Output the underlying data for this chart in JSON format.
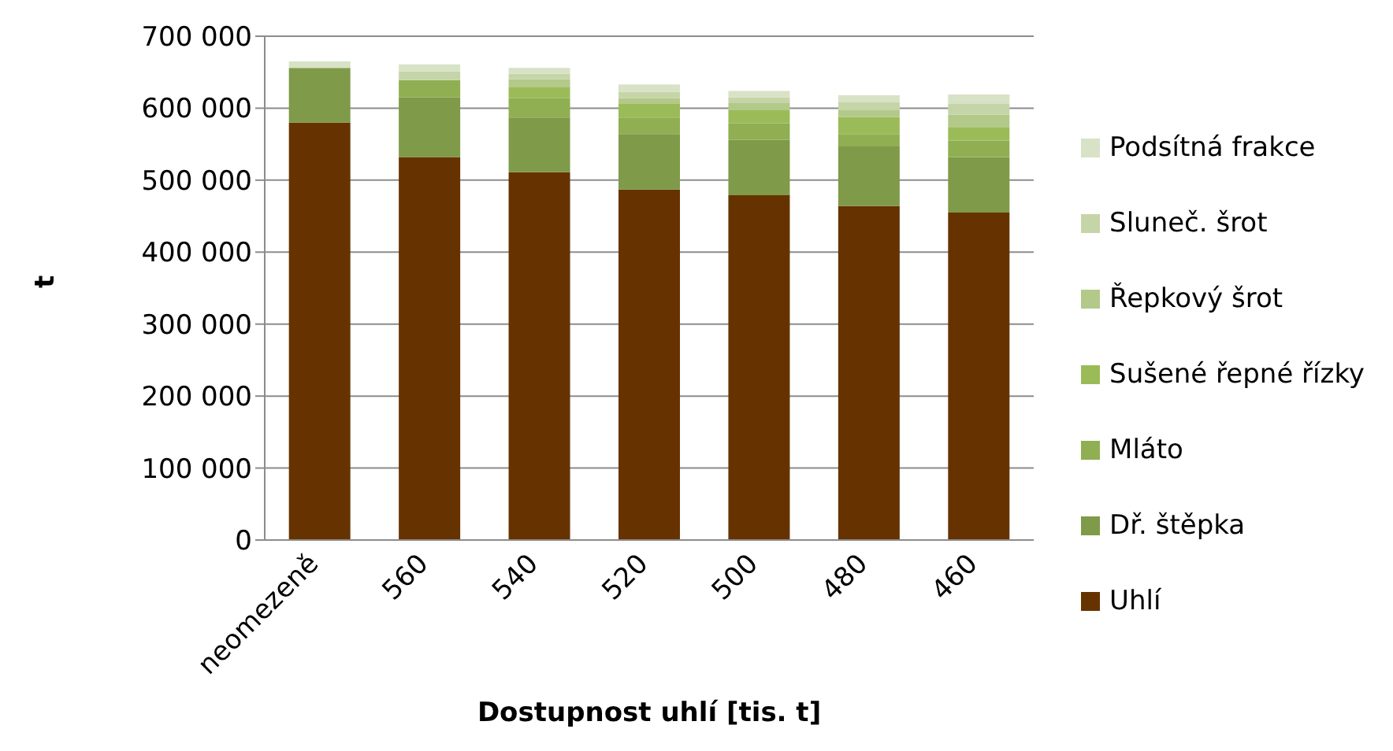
{
  "chart_data": {
    "type": "bar",
    "stacked": true,
    "xlabel": "Dostupnost uhlí  [tis. t]",
    "ylabel": "t",
    "categories": [
      "neomezeně",
      "560",
      "540",
      "520",
      "500",
      "480",
      "460"
    ],
    "series": [
      {
        "name": "Uhlí",
        "color": "#663300",
        "values": [
          580000,
          532000,
          511000,
          487000,
          479000,
          464000,
          455000
        ]
      },
      {
        "name": "Dř. štěpka",
        "color": "#7f9a48",
        "values": [
          76000,
          83000,
          76000,
          77000,
          77000,
          83000,
          77000
        ]
      },
      {
        "name": "Mláto",
        "color": "#8faf52",
        "values": [
          0,
          24000,
          27000,
          23000,
          23000,
          17000,
          23000
        ]
      },
      {
        "name": "Sušené řepné řízky",
        "color": "#9bbb59",
        "values": [
          0,
          0,
          15000,
          19000,
          19000,
          24000,
          19000
        ]
      },
      {
        "name": "Řepkový šrot",
        "color": "#b3c98a",
        "values": [
          0,
          0,
          11000,
          8000,
          9000,
          10000,
          17000
        ]
      },
      {
        "name": "Sluneč. šrot",
        "color": "#c6d5a8",
        "values": [
          0,
          12000,
          8000,
          9000,
          8000,
          10000,
          15000
        ]
      },
      {
        "name": "Podsítná frakce",
        "color": "#d8e2c6",
        "values": [
          9000,
          10000,
          8000,
          10000,
          9000,
          10000,
          13000
        ]
      }
    ],
    "ylim": [
      0,
      700000
    ],
    "yticks": [
      {
        "value": 0,
        "label": "0"
      },
      {
        "value": 100000,
        "label": "100 000"
      },
      {
        "value": 200000,
        "label": "200 000"
      },
      {
        "value": 300000,
        "label": "300 000"
      },
      {
        "value": 400000,
        "label": "400 000"
      },
      {
        "value": 500000,
        "label": "500 000"
      },
      {
        "value": 600000,
        "label": "600 000"
      },
      {
        "value": 700000,
        "label": "700 000"
      }
    ],
    "grid": "y",
    "legend": "right"
  }
}
